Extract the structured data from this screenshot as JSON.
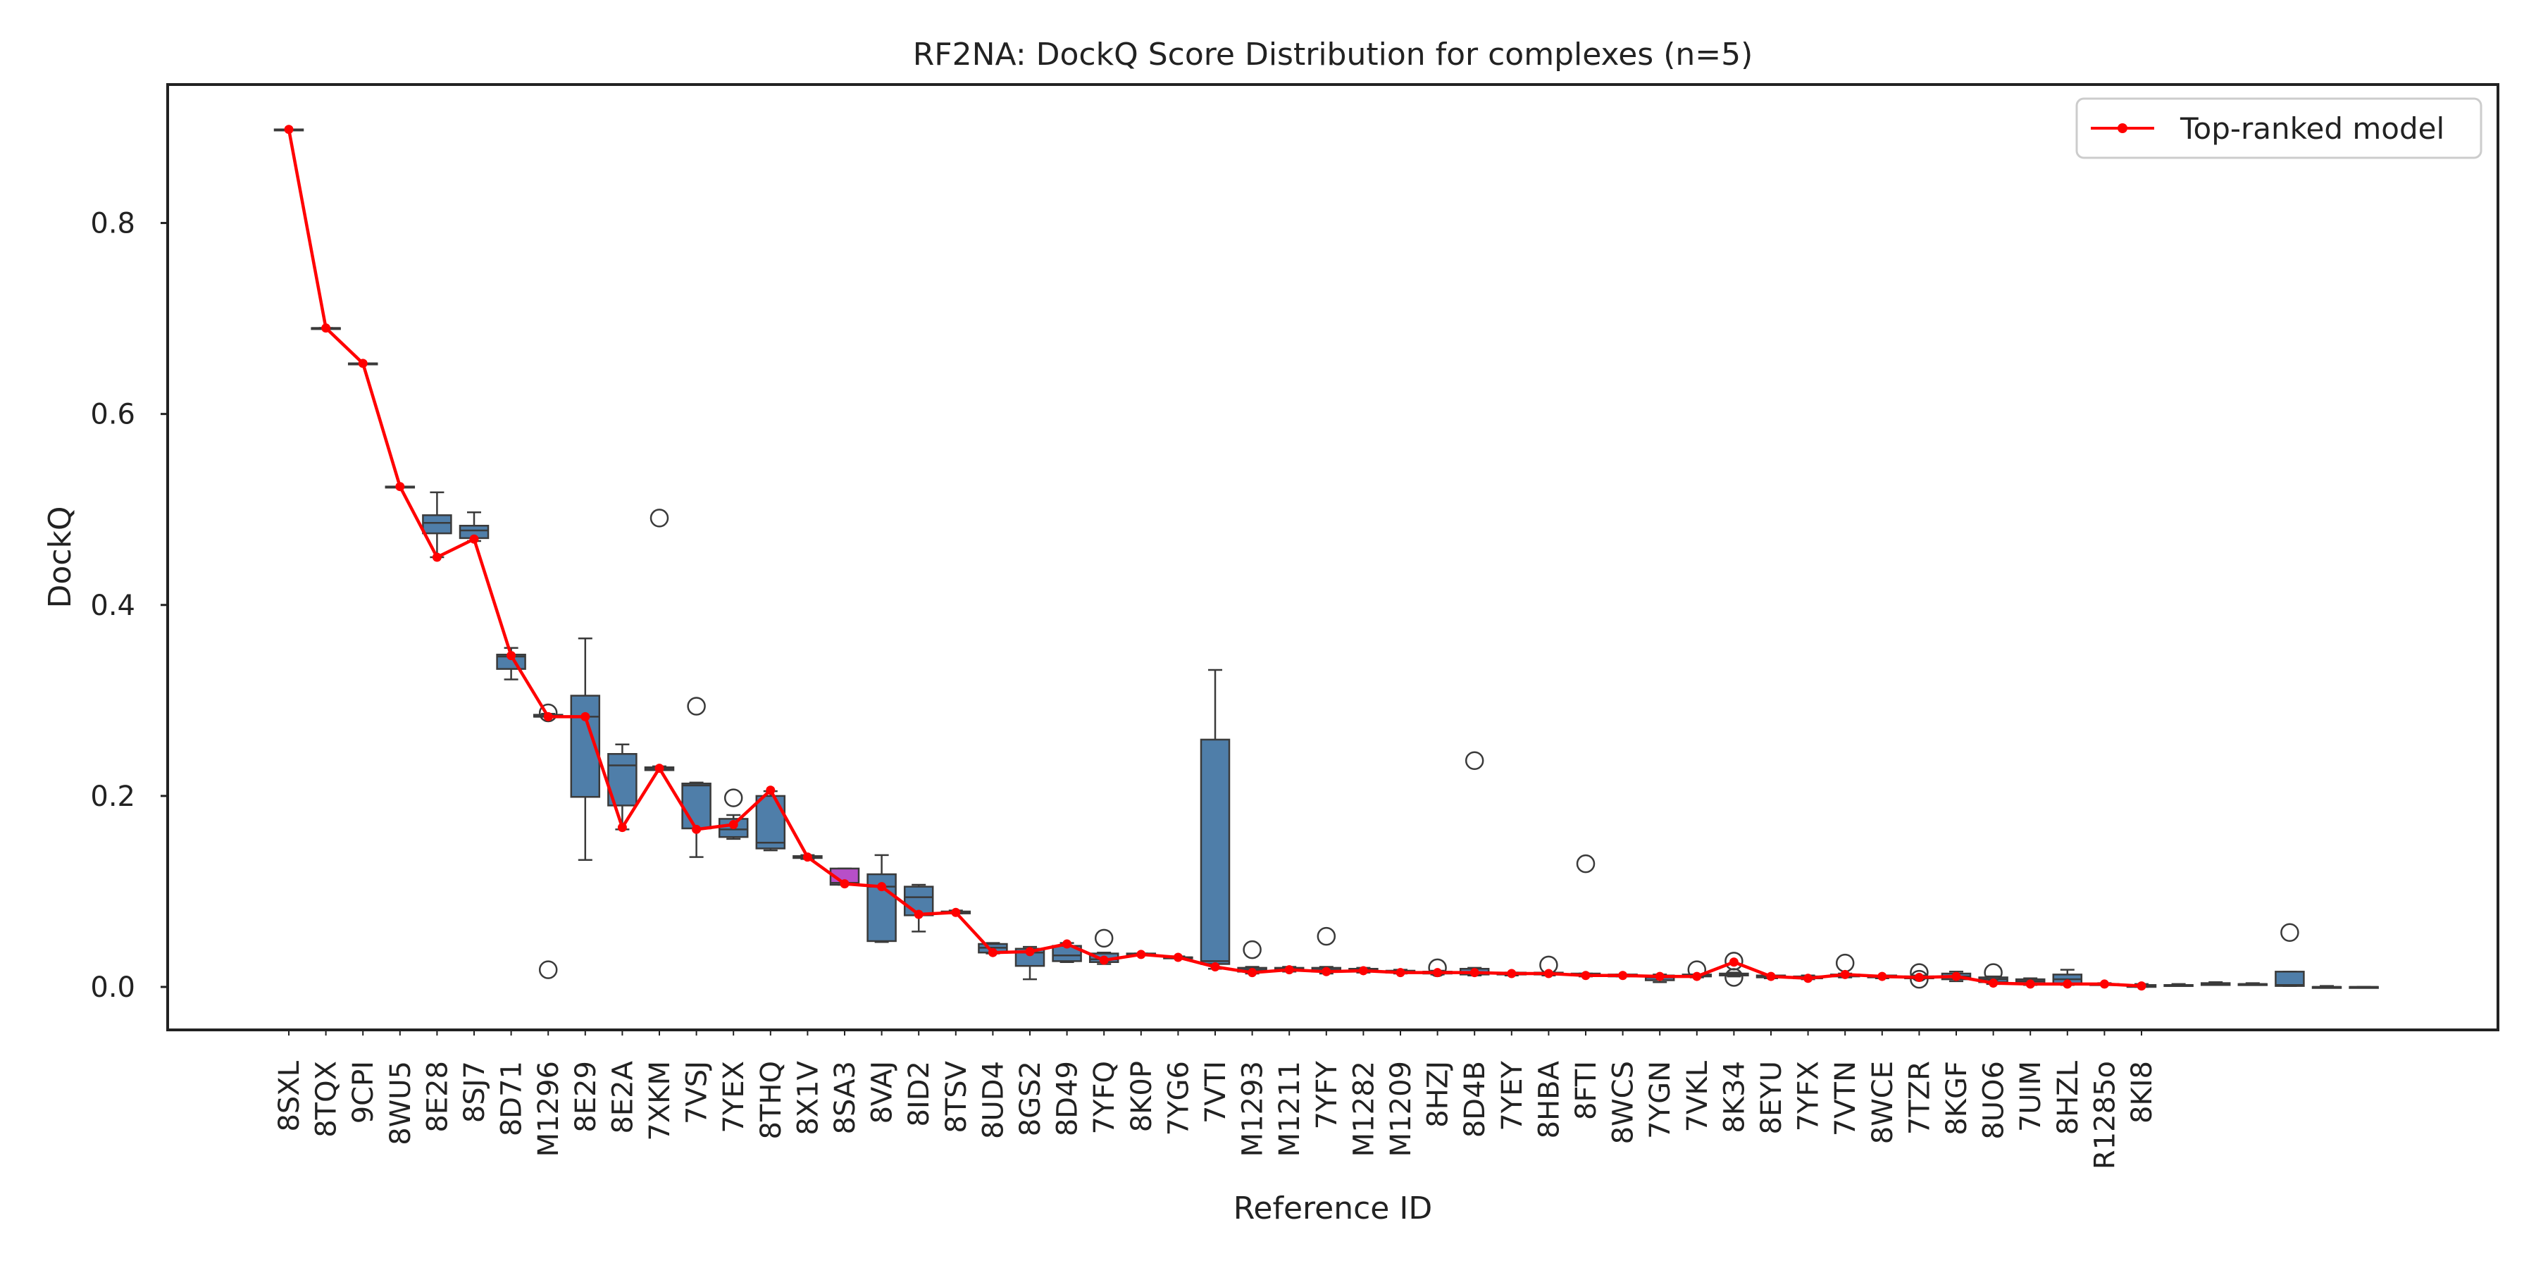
{
  "chart_data": {
    "type": "box",
    "title": "RF2NA: DockQ Score Distribution for complexes (n=5)",
    "xlabel": "Reference ID",
    "ylabel": "DockQ",
    "ylim": [
      -0.045,
      0.945
    ],
    "yticks": [
      0.0,
      0.2,
      0.4,
      0.6,
      0.8
    ],
    "ytick_labels": [
      "0.0",
      "0.2",
      "0.4",
      "0.6",
      "0.8"
    ],
    "grid": false,
    "legend": {
      "position": "top-right",
      "entries": [
        {
          "label": "Top-ranked model",
          "color": "#ff0000"
        }
      ]
    },
    "colors": {
      "box": "#4f7ea9",
      "box_highlight": "#b74fc8",
      "box_edge": "#3a3a3a",
      "line": "#ff0000"
    },
    "categories": [
      {
        "id": "8SXL",
        "min": 0.898,
        "q1": 0.898,
        "median": 0.898,
        "q3": 0.898,
        "max": 0.898,
        "outliers": [],
        "top": 0.898
      },
      {
        "id": "8TQX",
        "min": 0.69,
        "q1": 0.69,
        "median": 0.69,
        "q3": 0.69,
        "max": 0.69,
        "outliers": [],
        "top": 0.69
      },
      {
        "id": "9CPI",
        "min": 0.653,
        "q1": 0.653,
        "median": 0.653,
        "q3": 0.653,
        "max": 0.653,
        "outliers": [],
        "top": 0.653
      },
      {
        "id": "8WU5",
        "min": 0.524,
        "q1": 0.524,
        "median": 0.524,
        "q3": 0.524,
        "max": 0.524,
        "outliers": [],
        "top": 0.524
      },
      {
        "id": "8E28",
        "min": 0.45,
        "q1": 0.475,
        "median": 0.486,
        "q3": 0.494,
        "max": 0.518,
        "outliers": [],
        "top": 0.45
      },
      {
        "id": "8SJ7",
        "min": 0.467,
        "q1": 0.47,
        "median": 0.478,
        "q3": 0.483,
        "max": 0.497,
        "outliers": [],
        "top": 0.469
      },
      {
        "id": "8D71",
        "min": 0.322,
        "q1": 0.333,
        "median": 0.346,
        "q3": 0.348,
        "max": 0.355,
        "outliers": [],
        "top": 0.347
      },
      {
        "id": "M1296",
        "min": 0.283,
        "q1": 0.283,
        "median": 0.283,
        "q3": 0.285,
        "max": 0.286,
        "outliers": [
          0.287,
          0.018
        ],
        "top": 0.283
      },
      {
        "id": "8E29",
        "min": 0.133,
        "q1": 0.199,
        "median": 0.283,
        "q3": 0.305,
        "max": 0.365,
        "outliers": [],
        "top": 0.283
      },
      {
        "id": "8E2A",
        "min": 0.165,
        "q1": 0.19,
        "median": 0.232,
        "q3": 0.244,
        "max": 0.254,
        "outliers": [],
        "top": 0.167
      },
      {
        "id": "7XKM",
        "min": 0.227,
        "q1": 0.227,
        "median": 0.229,
        "q3": 0.23,
        "max": 0.231,
        "outliers": [
          0.491
        ],
        "top": 0.229
      },
      {
        "id": "7VSJ",
        "min": 0.136,
        "q1": 0.166,
        "median": 0.211,
        "q3": 0.213,
        "max": 0.214,
        "outliers": [
          0.294
        ],
        "top": 0.165
      },
      {
        "id": "7YEX",
        "min": 0.155,
        "q1": 0.157,
        "median": 0.165,
        "q3": 0.176,
        "max": 0.18,
        "outliers": [
          0.198
        ],
        "top": 0.17
      },
      {
        "id": "8THQ",
        "min": 0.143,
        "q1": 0.145,
        "median": 0.151,
        "q3": 0.2,
        "max": 0.205,
        "outliers": [],
        "top": 0.206
      },
      {
        "id": "8X1V",
        "min": 0.134,
        "q1": 0.135,
        "median": 0.136,
        "q3": 0.137,
        "max": 0.138,
        "outliers": [],
        "top": 0.136
      },
      {
        "id": "8SA3",
        "min": 0.107,
        "q1": 0.107,
        "median": 0.109,
        "q3": 0.124,
        "max": 0.124,
        "outliers": [],
        "top": 0.108,
        "highlight": true
      },
      {
        "id": "8VAJ",
        "min": 0.047,
        "q1": 0.048,
        "median": 0.105,
        "q3": 0.118,
        "max": 0.138,
        "outliers": [],
        "top": 0.105
      },
      {
        "id": "8ID2",
        "min": 0.058,
        "q1": 0.075,
        "median": 0.094,
        "q3": 0.105,
        "max": 0.107,
        "outliers": [],
        "top": 0.076
      },
      {
        "id": "8TSV",
        "min": 0.077,
        "q1": 0.077,
        "median": 0.078,
        "q3": 0.079,
        "max": 0.08,
        "outliers": [],
        "top": 0.078
      },
      {
        "id": "8UD4",
        "min": 0.035,
        "q1": 0.036,
        "median": 0.041,
        "q3": 0.045,
        "max": 0.046,
        "outliers": [],
        "top": 0.036
      },
      {
        "id": "8GS2",
        "min": 0.008,
        "q1": 0.022,
        "median": 0.036,
        "q3": 0.04,
        "max": 0.042,
        "outliers": [],
        "top": 0.037
      },
      {
        "id": "8D49",
        "min": 0.026,
        "q1": 0.027,
        "median": 0.033,
        "q3": 0.043,
        "max": 0.046,
        "outliers": [],
        "top": 0.045
      },
      {
        "id": "7YFQ",
        "min": 0.024,
        "q1": 0.026,
        "median": 0.029,
        "q3": 0.035,
        "max": 0.036,
        "outliers": [
          0.051
        ],
        "top": 0.028
      },
      {
        "id": "8K0P",
        "min": 0.033,
        "q1": 0.033,
        "median": 0.034,
        "q3": 0.035,
        "max": 0.035,
        "outliers": [],
        "top": 0.034
      },
      {
        "id": "7YG6",
        "min": 0.03,
        "q1": 0.03,
        "median": 0.031,
        "q3": 0.031,
        "max": 0.032,
        "outliers": [],
        "top": 0.031
      },
      {
        "id": "7VTI",
        "min": 0.019,
        "q1": 0.024,
        "median": 0.027,
        "q3": 0.259,
        "max": 0.332,
        "outliers": [],
        "top": 0.021
      },
      {
        "id": "M1293",
        "min": 0.014,
        "q1": 0.016,
        "median": 0.018,
        "q3": 0.02,
        "max": 0.021,
        "outliers": [
          0.039
        ],
        "top": 0.015
      },
      {
        "id": "M1211",
        "min": 0.016,
        "q1": 0.017,
        "median": 0.019,
        "q3": 0.02,
        "max": 0.021,
        "outliers": [],
        "top": 0.018
      },
      {
        "id": "7YFY",
        "min": 0.014,
        "q1": 0.016,
        "median": 0.018,
        "q3": 0.02,
        "max": 0.021,
        "outliers": [
          0.053
        ],
        "top": 0.016
      },
      {
        "id": "M1282",
        "min": 0.015,
        "q1": 0.016,
        "median": 0.017,
        "q3": 0.019,
        "max": 0.02,
        "outliers": [],
        "top": 0.017
      },
      {
        "id": "M1209",
        "min": 0.014,
        "q1": 0.015,
        "median": 0.016,
        "q3": 0.017,
        "max": 0.018,
        "outliers": [],
        "top": 0.015
      },
      {
        "id": "8HZJ",
        "min": 0.013,
        "q1": 0.014,
        "median": 0.015,
        "q3": 0.016,
        "max": 0.017,
        "outliers": [
          0.02
        ],
        "top": 0.015
      },
      {
        "id": "8D4B",
        "min": 0.012,
        "q1": 0.013,
        "median": 0.015,
        "q3": 0.019,
        "max": 0.02,
        "outliers": [
          0.237
        ],
        "top": 0.015
      },
      {
        "id": "7YEY",
        "min": 0.012,
        "q1": 0.013,
        "median": 0.014,
        "q3": 0.015,
        "max": 0.015,
        "outliers": [],
        "top": 0.014
      },
      {
        "id": "8HBA",
        "min": 0.012,
        "q1": 0.013,
        "median": 0.014,
        "q3": 0.015,
        "max": 0.015,
        "outliers": [
          0.023
        ],
        "top": 0.014
      },
      {
        "id": "8FTI",
        "min": 0.011,
        "q1": 0.012,
        "median": 0.013,
        "q3": 0.014,
        "max": 0.014,
        "outliers": [
          0.129
        ],
        "top": 0.012
      },
      {
        "id": "8WCS",
        "min": 0.011,
        "q1": 0.011,
        "median": 0.012,
        "q3": 0.013,
        "max": 0.013,
        "outliers": [],
        "top": 0.012
      },
      {
        "id": "7YGN",
        "min": 0.005,
        "q1": 0.007,
        "median": 0.01,
        "q3": 0.012,
        "max": 0.013,
        "outliers": [],
        "top": 0.011
      },
      {
        "id": "7VKL",
        "min": 0.01,
        "q1": 0.011,
        "median": 0.012,
        "q3": 0.013,
        "max": 0.013,
        "outliers": [
          0.018
        ],
        "top": 0.011
      },
      {
        "id": "8K34",
        "min": 0.011,
        "q1": 0.012,
        "median": 0.013,
        "q3": 0.014,
        "max": 0.015,
        "outliers": [
          0.027,
          0.01
        ],
        "top": 0.026
      },
      {
        "id": "8EYU",
        "min": 0.009,
        "q1": 0.01,
        "median": 0.011,
        "q3": 0.012,
        "max": 0.012,
        "outliers": [],
        "top": 0.011
      },
      {
        "id": "7YFX",
        "min": 0.008,
        "q1": 0.009,
        "median": 0.01,
        "q3": 0.011,
        "max": 0.012,
        "outliers": [],
        "top": 0.009
      },
      {
        "id": "7VTN",
        "min": 0.01,
        "q1": 0.011,
        "median": 0.012,
        "q3": 0.013,
        "max": 0.014,
        "outliers": [
          0.025
        ],
        "top": 0.013
      },
      {
        "id": "8WCE",
        "min": 0.009,
        "q1": 0.01,
        "median": 0.011,
        "q3": 0.012,
        "max": 0.012,
        "outliers": [],
        "top": 0.011
      },
      {
        "id": "7TZR",
        "min": 0.009,
        "q1": 0.009,
        "median": 0.01,
        "q3": 0.011,
        "max": 0.012,
        "outliers": [
          0.015,
          0.008
        ],
        "top": 0.01
      },
      {
        "id": "8KGF",
        "min": 0.006,
        "q1": 0.008,
        "median": 0.011,
        "q3": 0.014,
        "max": 0.016,
        "outliers": [],
        "top": 0.011
      },
      {
        "id": "8UO6",
        "min": 0.003,
        "q1": 0.005,
        "median": 0.008,
        "q3": 0.01,
        "max": 0.011,
        "outliers": [
          0.015
        ],
        "top": 0.004
      },
      {
        "id": "7UIM",
        "min": 0.002,
        "q1": 0.004,
        "median": 0.006,
        "q3": 0.008,
        "max": 0.009,
        "outliers": [],
        "top": 0.003
      },
      {
        "id": "8HZL",
        "min": 0.002,
        "q1": 0.003,
        "median": 0.008,
        "q3": 0.013,
        "max": 0.018,
        "outliers": [],
        "top": 0.003
      },
      {
        "id": "R1285o",
        "min": 0.002,
        "q1": 0.002,
        "median": 0.003,
        "q3": 0.003,
        "max": 0.004,
        "outliers": [],
        "top": 0.003
      },
      {
        "id": "8KI8",
        "min": 0.0,
        "q1": 0.0,
        "median": 0.001,
        "q3": 0.002,
        "max": 0.003,
        "outliers": [],
        "top": 0.001
      },
      {
        "id": "",
        "min": 0.001,
        "q1": 0.001,
        "median": 0.002,
        "q3": 0.002,
        "max": 0.003,
        "outliers": [],
        "top": null
      },
      {
        "id": "",
        "min": 0.002,
        "q1": 0.002,
        "median": 0.003,
        "q3": 0.004,
        "max": 0.005,
        "outliers": [],
        "top": null
      },
      {
        "id": "",
        "min": 0.002,
        "q1": 0.002,
        "median": 0.003,
        "q3": 0.003,
        "max": 0.004,
        "outliers": [],
        "top": null
      },
      {
        "id": "",
        "min": 0.001,
        "q1": 0.001,
        "median": 0.002,
        "q3": 0.016,
        "max": 0.016,
        "outliers": [
          0.057
        ],
        "top": null
      },
      {
        "id": "",
        "min": 0.0,
        "q1": 0.0,
        "median": 0.0,
        "q3": 0.0,
        "max": 0.001,
        "outliers": [],
        "top": null
      },
      {
        "id": "",
        "min": 0.0,
        "q1": 0.0,
        "median": 0.0,
        "q3": 0.0,
        "max": 0.0,
        "outliers": [],
        "top": null
      }
    ]
  }
}
